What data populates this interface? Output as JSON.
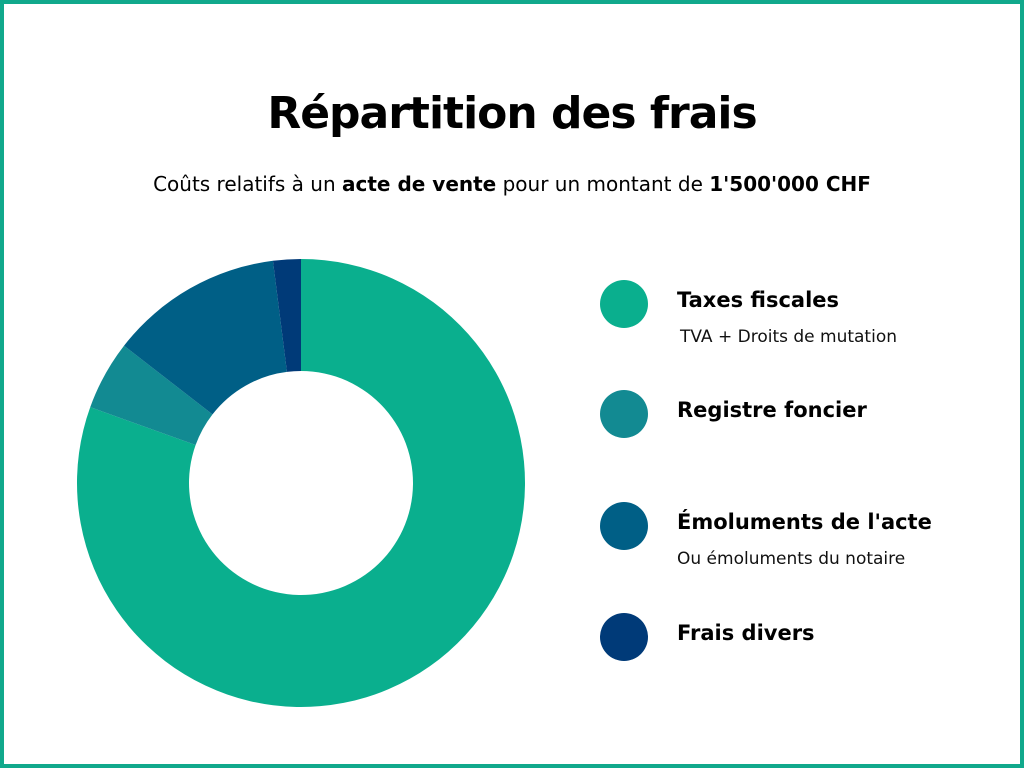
{
  "title": "Répartition des frais",
  "subtitle": {
    "part1": "Coûts relatifs à un ",
    "bold1": "acte de vente",
    "part2": " pour un montant de ",
    "bold2": "1'500'000 CHF"
  },
  "colors": {
    "border": "#11a98c",
    "taxes": "#0aaf8e",
    "registre": "#128a92",
    "emoluments": "#005f86",
    "divers": "#003a78"
  },
  "legend": [
    {
      "label": "Taxes fiscales",
      "sub": "TVA + Droits de mutation",
      "icon": "circle-swatch"
    },
    {
      "label": "Registre foncier",
      "sub": "",
      "icon": "circle-swatch"
    },
    {
      "label": "Émoluments de l'acte",
      "sub": "Ou émoluments du notaire",
      "icon": "circle-swatch"
    },
    {
      "label": "Frais divers",
      "sub": "",
      "icon": "circle-swatch"
    }
  ],
  "chart_data": {
    "type": "pie",
    "variant": "donut",
    "title": "Répartition des frais",
    "categories": [
      "Taxes fiscales",
      "Registre foncier",
      "Émoluments de l'acte",
      "Frais divers"
    ],
    "values": [
      80.5,
      5.0,
      12.5,
      2.0
    ],
    "unit": "%",
    "colors": [
      "#0aaf8e",
      "#128a92",
      "#005f86",
      "#003a78"
    ],
    "start": "12 o'clock, clockwise",
    "legend": "right"
  }
}
